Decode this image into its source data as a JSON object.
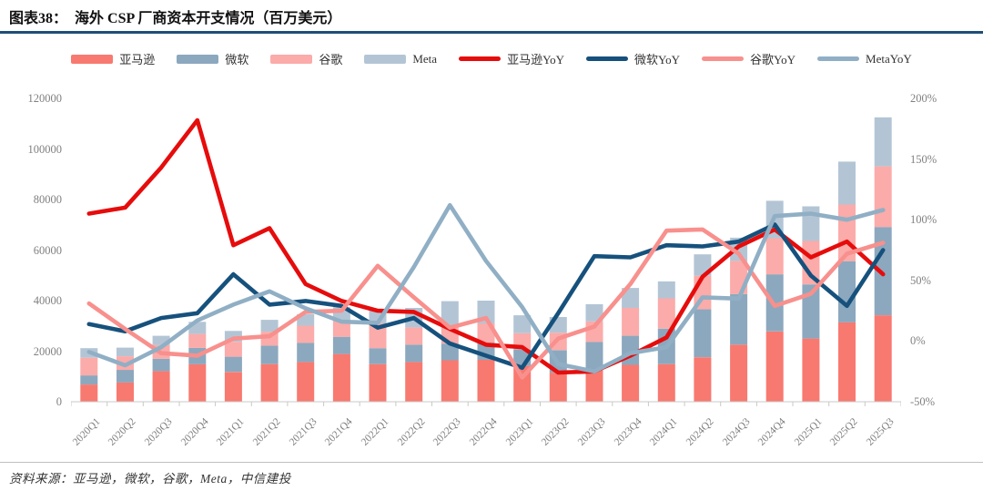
{
  "header": {
    "title_prefix": "图表38：",
    "title_text": "海外 CSP 厂商资本开支情况（百万美元）"
  },
  "footer": {
    "source": "资料来源：亚马逊，微软，谷歌，Meta，中信建投"
  },
  "chart_data": {
    "type": "bar+line",
    "title": "海外 CSP 厂商资本开支情况（百万美元）",
    "grid": false,
    "legend_position": "top",
    "categories": [
      "2020Q1",
      "2020Q2",
      "2020Q3",
      "2020Q4",
      "2021Q1",
      "2021Q2",
      "2021Q3",
      "2021Q4",
      "2022Q1",
      "2022Q2",
      "2022Q3",
      "2022Q4",
      "2023Q1",
      "2023Q2",
      "2023Q3",
      "2023Q4",
      "2024Q1",
      "2024Q2",
      "2024Q3",
      "2024Q4",
      "2025Q1",
      "2025Q2",
      "2025Q3"
    ],
    "left_axis": {
      "min": 0,
      "max": 120000,
      "ticks": [
        0,
        20000,
        40000,
        60000,
        80000,
        100000,
        120000
      ]
    },
    "right_axis": {
      "min": -50,
      "max": 200,
      "ticks": [
        -50,
        0,
        50,
        100,
        150,
        200
      ],
      "tick_labels": [
        "-50%",
        "0%",
        "50%",
        "100%",
        "150%",
        "200%"
      ]
    },
    "bar_series": [
      {
        "name": "亚马逊",
        "color": "#F87970",
        "values": [
          6800,
          7600,
          12100,
          14800,
          11800,
          14900,
          15700,
          18900,
          14900,
          15700,
          16400,
          16600,
          14200,
          11500,
          12500,
          14600,
          14900,
          17600,
          22600,
          27800,
          25000,
          31400,
          34200
        ]
      },
      {
        "name": "微软",
        "color": "#8CA8BE",
        "values": [
          3600,
          5000,
          4900,
          6500,
          6000,
          7300,
          7600,
          6800,
          6300,
          6900,
          6600,
          6800,
          6600,
          8900,
          11200,
          11500,
          14000,
          19000,
          20000,
          22600,
          21400,
          24200,
          34900
        ]
      },
      {
        "name": "谷歌",
        "color": "#FBABA9",
        "values": [
          7000,
          5400,
          5400,
          5500,
          5900,
          5500,
          6800,
          6400,
          9800,
          6800,
          7300,
          7600,
          6300,
          6900,
          8100,
          11000,
          12000,
          13200,
          13100,
          14300,
          17200,
          22400,
          24000
        ]
      },
      {
        "name": "Meta",
        "color": "#B3C5D5",
        "values": [
          3800,
          3400,
          3700,
          4800,
          4300,
          4700,
          4500,
          5300,
          5500,
          7700,
          9500,
          9000,
          7100,
          6200,
          6800,
          7900,
          6700,
          8500,
          9200,
          14800,
          13700,
          17000,
          19400
        ]
      }
    ],
    "line_series": [
      {
        "name": "亚马逊YoY",
        "color": "#E60C0C",
        "values": [
          105,
          110,
          143,
          182,
          79,
          93,
          47,
          33,
          25,
          24,
          10,
          -3,
          -5,
          -26,
          -25,
          -12,
          3,
          53,
          78,
          92,
          69,
          82,
          55
        ]
      },
      {
        "name": "微软YoY",
        "color": "#16517D",
        "values": [
          14,
          8,
          19,
          23,
          55,
          30,
          33,
          29,
          11,
          19,
          -2,
          -12,
          -22,
          23,
          70,
          69,
          79,
          78,
          82,
          96,
          54,
          29,
          75
        ]
      },
      {
        "name": "谷歌YoY",
        "color": "#F8908D",
        "values": [
          31,
          10,
          -10,
          -12,
          2,
          4,
          24,
          25,
          62,
          36,
          11,
          19,
          -30,
          2,
          12,
          47,
          91,
          92,
          72,
          29,
          39,
          72,
          81
        ]
      },
      {
        "name": "MetaYoY",
        "color": "#90AFC5",
        "values": [
          -9,
          -20,
          -5,
          17,
          30,
          41,
          27,
          16,
          15,
          61,
          112,
          66,
          28,
          -19,
          -25,
          -10,
          -5,
          36,
          35,
          103,
          105,
          100,
          108
        ]
      }
    ]
  }
}
